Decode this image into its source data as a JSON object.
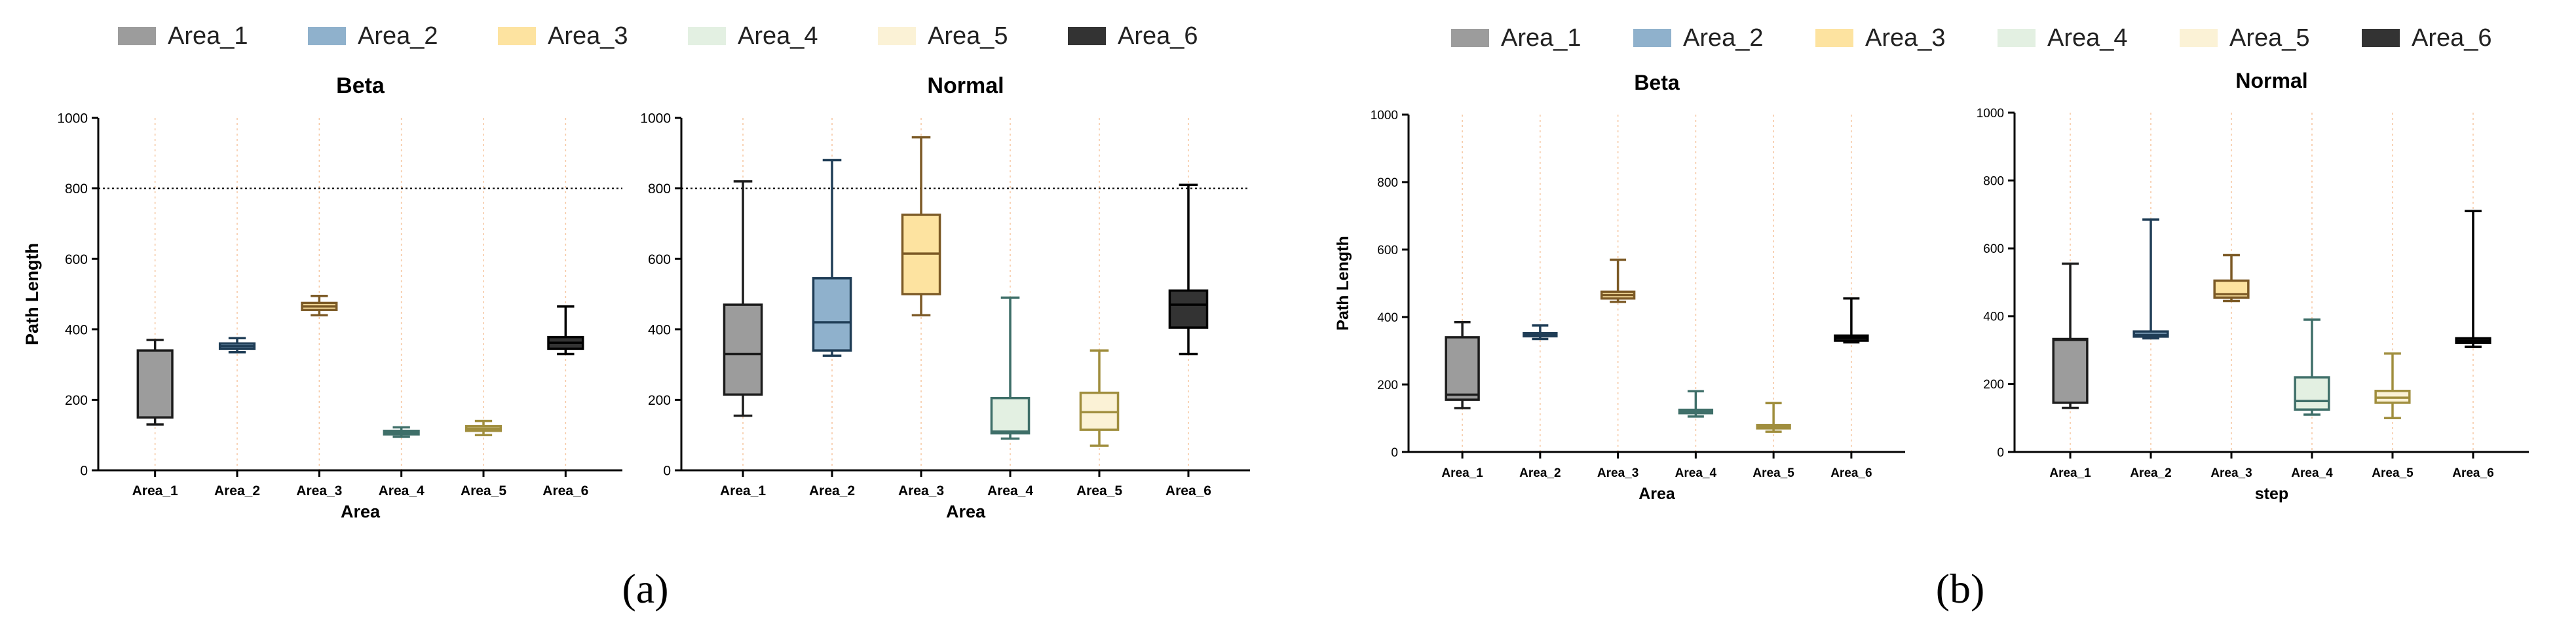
{
  "figure": {
    "panels": [
      {
        "label": "(a)"
      },
      {
        "label": "(b)"
      }
    ]
  },
  "colors": {
    "Area_1": {
      "fill": "#9c9c9c",
      "stroke": "#1c1c1c"
    },
    "Area_2": {
      "fill": "#8fb1cc",
      "stroke": "#1f3d56"
    },
    "Area_3": {
      "fill": "#fde3a0",
      "stroke": "#7c5a26"
    },
    "Area_4": {
      "fill": "#e3f0e2",
      "stroke": "#3f6f69"
    },
    "Area_5": {
      "fill": "#fbf2d6",
      "stroke": "#a08e3e"
    },
    "Area_6": {
      "fill": "#333333",
      "stroke": "#000000"
    }
  },
  "chart_data": [
    {
      "type": "box",
      "panel": "(a)",
      "title": "Beta",
      "xlabel": "Area",
      "ylabel": "Path Length",
      "ylim": [
        0,
        1000
      ],
      "yticks": [
        0,
        200,
        400,
        600,
        800,
        1000
      ],
      "reference_line": 800,
      "legend": [
        "Area_1",
        "Area_2",
        "Area_3",
        "Area_4",
        "Area_5",
        "Area_6"
      ],
      "categories": [
        "Area_1",
        "Area_2",
        "Area_3",
        "Area_4",
        "Area_5",
        "Area_6"
      ],
      "boxes": [
        {
          "min": 130,
          "q1": 150,
          "median": 150,
          "q3": 340,
          "max": 370
        },
        {
          "min": 335,
          "q1": 345,
          "median": 352,
          "q3": 360,
          "max": 375
        },
        {
          "min": 440,
          "q1": 455,
          "median": 465,
          "q3": 475,
          "max": 495
        },
        {
          "min": 95,
          "q1": 102,
          "median": 108,
          "q3": 112,
          "max": 122
        },
        {
          "min": 100,
          "q1": 112,
          "median": 118,
          "q3": 125,
          "max": 140
        },
        {
          "min": 330,
          "q1": 345,
          "median": 362,
          "q3": 378,
          "max": 465
        }
      ]
    },
    {
      "type": "box",
      "panel": "(a)",
      "title": "Normal",
      "xlabel": "Area",
      "ylabel": "",
      "ylim": [
        0,
        1000
      ],
      "yticks": [
        0,
        200,
        400,
        600,
        800,
        1000
      ],
      "reference_line": 800,
      "categories": [
        "Area_1",
        "Area_2",
        "Area_3",
        "Area_4",
        "Area_5",
        "Area_6"
      ],
      "boxes": [
        {
          "min": 155,
          "q1": 215,
          "median": 330,
          "q3": 470,
          "max": 820
        },
        {
          "min": 325,
          "q1": 340,
          "median": 420,
          "q3": 545,
          "max": 880
        },
        {
          "min": 440,
          "q1": 500,
          "median": 615,
          "q3": 725,
          "max": 945
        },
        {
          "min": 90,
          "q1": 105,
          "median": 110,
          "q3": 205,
          "max": 490
        },
        {
          "min": 70,
          "q1": 115,
          "median": 165,
          "q3": 220,
          "max": 340
        },
        {
          "min": 330,
          "q1": 405,
          "median": 470,
          "q3": 510,
          "max": 810
        }
      ]
    },
    {
      "type": "box",
      "panel": "(b)",
      "title": "Beta",
      "xlabel": "Area",
      "ylabel": "Path Length",
      "ylim": [
        0,
        1000
      ],
      "yticks": [
        0,
        200,
        400,
        600,
        800,
        1000
      ],
      "legend": [
        "Area_1",
        "Area_2",
        "Area_3",
        "Area_4",
        "Area_5",
        "Area_6"
      ],
      "categories": [
        "Area_1",
        "Area_2",
        "Area_3",
        "Area_4",
        "Area_5",
        "Area_6"
      ],
      "boxes": [
        {
          "min": 130,
          "q1": 155,
          "median": 170,
          "q3": 340,
          "max": 385
        },
        {
          "min": 335,
          "q1": 343,
          "median": 348,
          "q3": 352,
          "max": 375
        },
        {
          "min": 445,
          "q1": 455,
          "median": 465,
          "q3": 475,
          "max": 570
        },
        {
          "min": 105,
          "q1": 115,
          "median": 120,
          "q3": 125,
          "max": 180
        },
        {
          "min": 60,
          "q1": 70,
          "median": 75,
          "q3": 80,
          "max": 145
        },
        {
          "min": 325,
          "q1": 330,
          "median": 338,
          "q3": 345,
          "max": 455
        }
      ]
    },
    {
      "type": "box",
      "panel": "(b)",
      "title": "Normal",
      "xlabel": "step",
      "ylabel": "",
      "ylim": [
        0,
        1000
      ],
      "yticks": [
        0,
        200,
        400,
        600,
        800,
        1000
      ],
      "categories": [
        "Area_1",
        "Area_2",
        "Area_3",
        "Area_4",
        "Area_5",
        "Area_6"
      ],
      "boxes": [
        {
          "min": 130,
          "q1": 145,
          "median": 330,
          "q3": 333,
          "max": 555
        },
        {
          "min": 335,
          "q1": 340,
          "median": 345,
          "q3": 355,
          "max": 685
        },
        {
          "min": 445,
          "q1": 455,
          "median": 465,
          "q3": 505,
          "max": 580
        },
        {
          "min": 110,
          "q1": 125,
          "median": 150,
          "q3": 220,
          "max": 390
        },
        {
          "min": 100,
          "q1": 145,
          "median": 160,
          "q3": 180,
          "max": 290
        },
        {
          "min": 310,
          "q1": 322,
          "median": 328,
          "q3": 335,
          "max": 710
        }
      ]
    }
  ]
}
